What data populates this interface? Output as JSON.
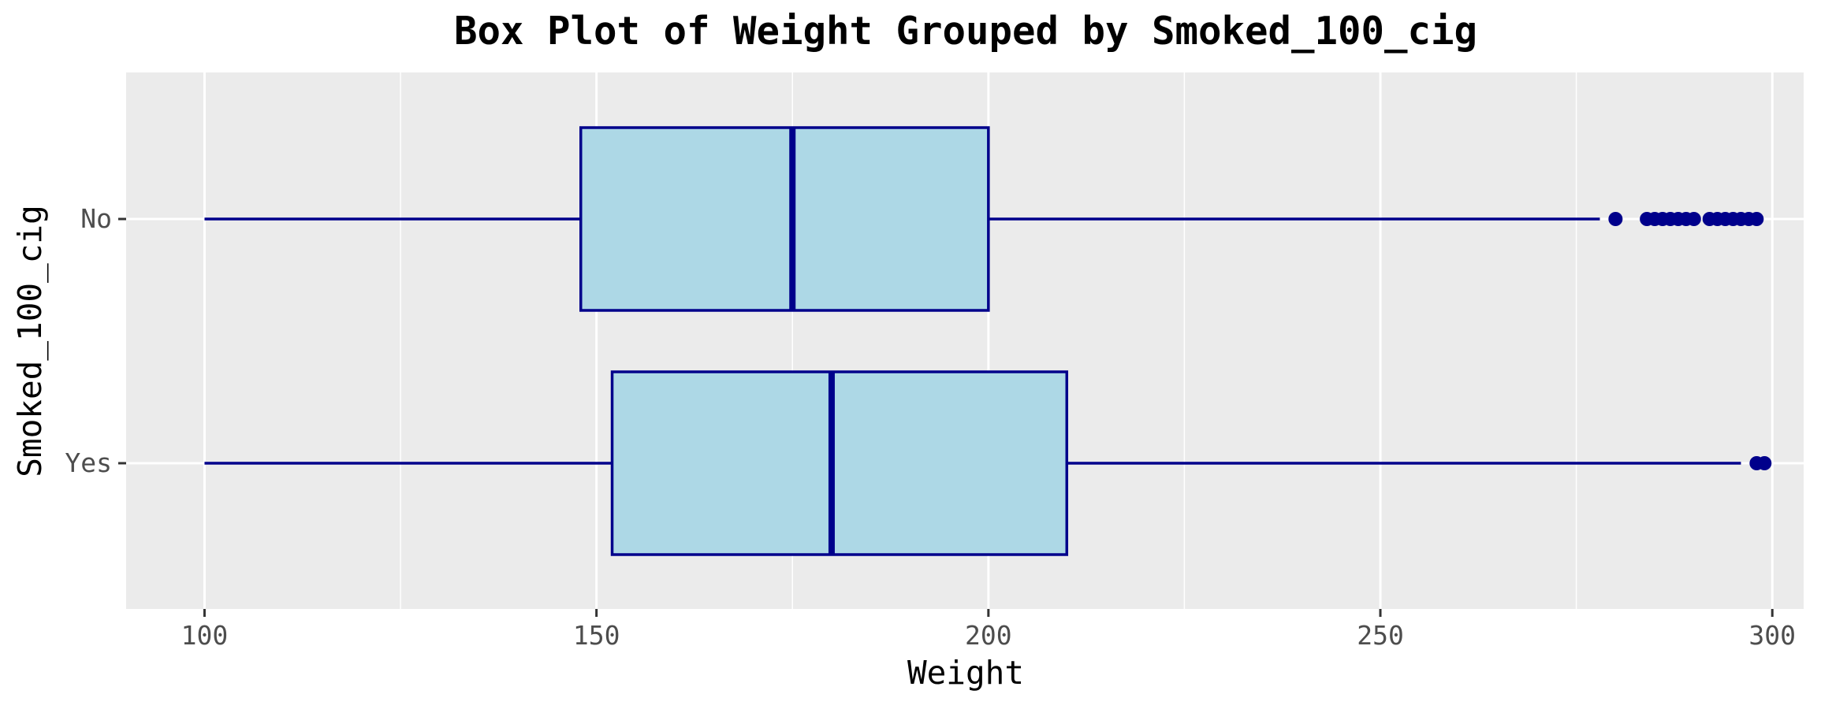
{
  "chart_data": {
    "type": "boxplot",
    "orientation": "horizontal",
    "title": "Box Plot of Weight Grouped by Smoked_100_cig",
    "xlabel": "Weight",
    "ylabel": "Smoked_100_cig",
    "xlim": [
      90,
      304
    ],
    "x_ticks": [
      100,
      150,
      200,
      250,
      300
    ],
    "x_minor_ticks": [
      125,
      175,
      225,
      275
    ],
    "categories": [
      "No",
      "Yes"
    ],
    "grid": true,
    "legend": "none",
    "colors": {
      "panel_bg": "#ebebeb",
      "grid": "#ffffff",
      "box_fill": "#add8e6",
      "box_stroke": "#00008b",
      "tick_text": "#4d4d4d",
      "tick_mark": "#333333"
    },
    "series": [
      {
        "category": "No",
        "whisker_low": 100,
        "q1": 148,
        "median": 175,
        "q3": 200,
        "whisker_high": 278,
        "outliers": [
          280,
          284,
          285,
          286,
          287,
          288,
          289,
          290,
          292,
          293,
          294,
          295,
          296,
          297,
          298
        ]
      },
      {
        "category": "Yes",
        "whisker_low": 100,
        "q1": 152,
        "median": 180,
        "q3": 210,
        "whisker_high": 296,
        "outliers": [
          298,
          299
        ]
      }
    ]
  }
}
